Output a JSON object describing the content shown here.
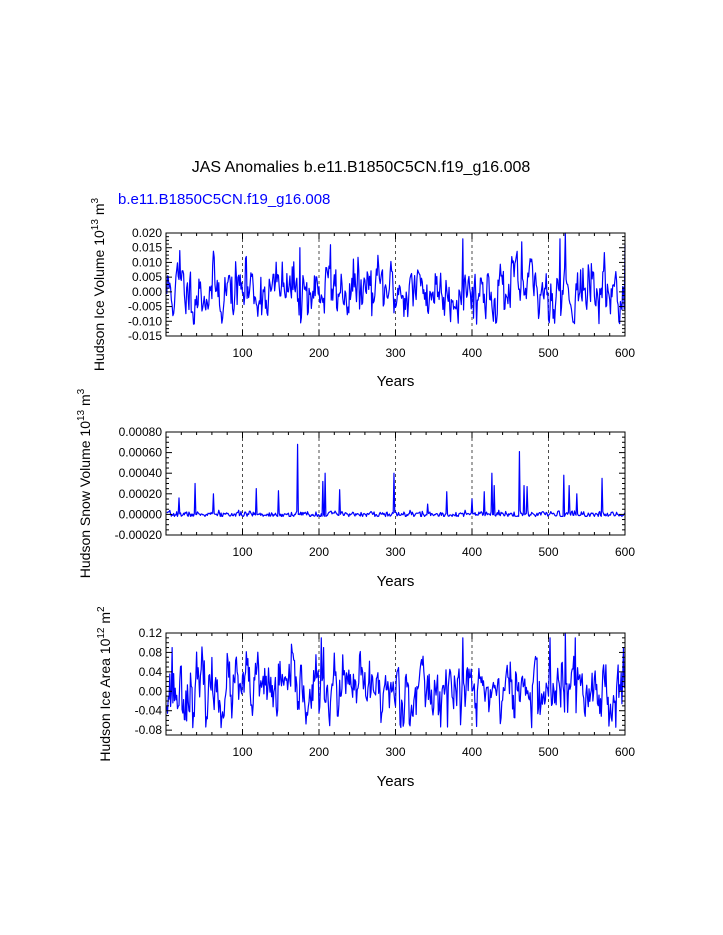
{
  "figure": {
    "title": "JAS Anomalies b.e11.B1850C5CN.f19_g16.008",
    "subtitle": "b.e11.B1850C5CN.f19_g16.008",
    "colors": {
      "series": "#0000ff",
      "axes": "#000000",
      "background": "#ffffff"
    }
  },
  "chart_data": [
    {
      "type": "line",
      "name": "ice-volume",
      "ylabel": "Hudson Ice Volume 10",
      "ylabel_exp": "13",
      "ylabel_unit": " m",
      "ylabel_unit_exp": "3",
      "xlabel": "Years",
      "xlim": [
        0,
        600
      ],
      "ylim": [
        -0.015,
        0.02
      ],
      "xticks": [
        100,
        200,
        300,
        400,
        500,
        600
      ],
      "xtick_labels": [
        "100",
        "200",
        "300",
        "400",
        "500",
        "600"
      ],
      "yticks": [
        -0.015,
        -0.01,
        -0.005,
        0.0,
        0.005,
        0.01,
        0.015,
        0.02
      ],
      "ytick_labels": [
        "-0.015",
        "-0.010",
        "-0.005",
        "0.000",
        "0.005",
        "0.010",
        "0.015",
        "0.020"
      ],
      "grid_x": [
        100,
        200,
        300,
        400,
        500
      ],
      "series": [
        {
          "name": "b.e11.B1850C5CN.f19_g16.008",
          "generator": {
            "n": 600,
            "seed": 11,
            "mean": 0.0005,
            "sd": 0.0052,
            "ar": 0.55,
            "min": -0.011,
            "max": 0.0195
          },
          "peaks": [
            [
              18,
              0.014
            ],
            [
              105,
              0.012
            ],
            [
              175,
              0.015
            ],
            [
              215,
              0.016
            ],
            [
              388,
              0.018
            ],
            [
              465,
              0.017
            ],
            [
              515,
              0.018
            ],
            [
              522,
              0.02
            ],
            [
              600,
              0.016
            ]
          ]
        }
      ]
    },
    {
      "type": "line",
      "name": "snow-volume",
      "ylabel": "Hudson Snow Volume 10",
      "ylabel_exp": "13",
      "ylabel_unit": " m",
      "ylabel_unit_exp": "3",
      "xlabel": "Years",
      "xlim": [
        0,
        600
      ],
      "ylim": [
        -0.0002,
        0.0008
      ],
      "xticks": [
        100,
        200,
        300,
        400,
        500,
        600
      ],
      "xtick_labels": [
        "100",
        "200",
        "300",
        "400",
        "500",
        "600"
      ],
      "yticks": [
        -0.0002,
        0.0,
        0.0002,
        0.0004,
        0.0006,
        0.0008
      ],
      "ytick_labels": [
        "-0.00020",
        "0.00000",
        "0.00020",
        "0.00040",
        "0.00060",
        "0.00080"
      ],
      "grid_x": [
        100,
        200,
        300,
        400,
        500
      ],
      "series": [
        {
          "name": "b.e11.B1850C5CN.f19_g16.008",
          "generator": {
            "n": 600,
            "seed": 7,
            "mean": 0.0,
            "sd": 1.5e-05,
            "ar": 0.2,
            "min": -2e-05,
            "max": 4e-05
          },
          "peaks": [
            [
              17,
              0.00016
            ],
            [
              38,
              0.0003
            ],
            [
              62,
              0.0002
            ],
            [
              118,
              0.00025
            ],
            [
              147,
              0.00023
            ],
            [
              172,
              0.00068
            ],
            [
              205,
              0.00032
            ],
            [
              208,
              0.0004
            ],
            [
              227,
              0.00024
            ],
            [
              298,
              0.0004
            ],
            [
              342,
              0.0001
            ],
            [
              367,
              0.00022
            ],
            [
              400,
              0.00015
            ],
            [
              416,
              0.00022
            ],
            [
              426,
              0.0004
            ],
            [
              429,
              0.00028
            ],
            [
              462,
              0.00061
            ],
            [
              468,
              0.00028
            ],
            [
              472,
              0.00027
            ],
            [
              520,
              0.00038
            ],
            [
              527,
              0.00028
            ],
            [
              537,
              0.0002
            ],
            [
              570,
              0.00035
            ]
          ]
        }
      ]
    },
    {
      "type": "line",
      "name": "ice-area",
      "ylabel": "Hudson Ice Area 10",
      "ylabel_exp": "12",
      "ylabel_unit": " m",
      "ylabel_unit_exp": "2",
      "xlabel": "Years",
      "xlim": [
        0,
        600
      ],
      "ylim": [
        -0.09,
        0.12
      ],
      "xticks": [
        100,
        200,
        300,
        400,
        500,
        600
      ],
      "xtick_labels": [
        "100",
        "200",
        "300",
        "400",
        "500",
        "600"
      ],
      "yticks": [
        -0.08,
        -0.04,
        0.0,
        0.04,
        0.08,
        0.12
      ],
      "ytick_labels": [
        "-0.08",
        "-0.04",
        "0.00",
        "0.04",
        "0.08",
        "0.12"
      ],
      "grid_x": [
        100,
        200,
        300,
        400,
        500
      ],
      "series": [
        {
          "name": "b.e11.B1850C5CN.f19_g16.008",
          "generator": {
            "n": 600,
            "seed": 23,
            "mean": 0.002,
            "sd": 0.034,
            "ar": 0.5,
            "min": -0.075,
            "max": 0.118
          },
          "peaks": [
            [
              8,
              0.09
            ],
            [
              203,
              0.11
            ],
            [
              388,
              0.11
            ],
            [
              502,
              0.11
            ],
            [
              522,
              0.12
            ],
            [
              535,
              0.11
            ],
            [
              598,
              0.09
            ]
          ]
        }
      ]
    }
  ]
}
